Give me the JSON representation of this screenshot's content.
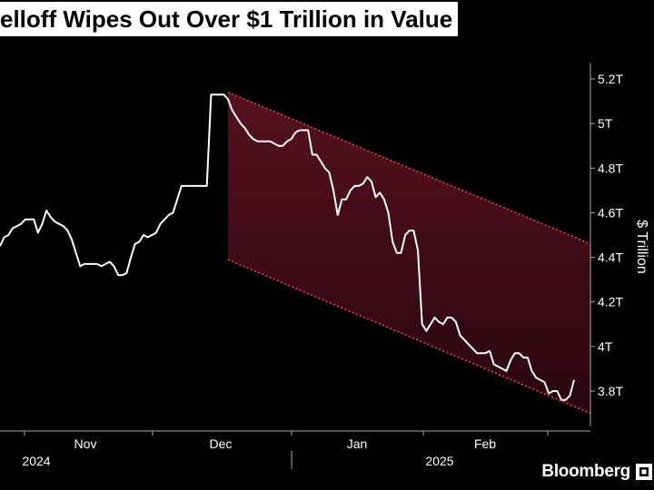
{
  "headline": "elloff Wipes Out Over $1 Trillion in Value",
  "source": "Bloomberg",
  "colors": {
    "background": "#000000",
    "line": "#ffffff",
    "channel_fill": "#3a0a12",
    "channel_border": "#ff3b4e",
    "text": "#ffffff"
  },
  "chart_data": {
    "type": "line",
    "ylabel": "$ Trillion",
    "ylim": [
      3.68,
      5.3
    ],
    "y_ticks": [
      {
        "value": 5.2,
        "label": "5.2T"
      },
      {
        "value": 5.0,
        "label": "5T"
      },
      {
        "value": 4.8,
        "label": "4.8T"
      },
      {
        "value": 4.6,
        "label": "4.6T"
      },
      {
        "value": 4.4,
        "label": "4.4T"
      },
      {
        "value": 4.2,
        "label": "4.2T"
      },
      {
        "value": 4.0,
        "label": "4T"
      },
      {
        "value": 3.8,
        "label": "3.8T"
      }
    ],
    "x_month_labels": [
      "Nov",
      "Dec",
      "Jan",
      "Feb"
    ],
    "x_year_labels": [
      "2024",
      "2025"
    ],
    "grid": false,
    "y_axis_position": "right",
    "series": [
      {
        "values": [
          4.45,
          4.49,
          4.5,
          4.53,
          4.54,
          4.55,
          4.57,
          4.57,
          4.57,
          4.51,
          4.55,
          4.61,
          4.58,
          4.56,
          4.55,
          4.54,
          4.52,
          4.48,
          4.42,
          4.36,
          4.37,
          4.37,
          4.37,
          4.37,
          4.36,
          4.37,
          4.38,
          4.36,
          4.32,
          4.32,
          4.33,
          4.4,
          4.46,
          4.47,
          4.5,
          4.49,
          4.5,
          4.51,
          4.55,
          4.57,
          4.59,
          4.6,
          4.66,
          4.72,
          4.72,
          4.72,
          4.72,
          4.72,
          4.72,
          4.72,
          5.13,
          5.13,
          5.13,
          5.13,
          5.11,
          5.06,
          5.03,
          5.0,
          4.98,
          4.95,
          4.93,
          4.92,
          4.92,
          4.92,
          4.92,
          4.91,
          4.9,
          4.9,
          4.92,
          4.93,
          4.96,
          4.97,
          4.97,
          4.97,
          4.86,
          4.86,
          4.83,
          4.8,
          4.78,
          4.7,
          4.59,
          4.66,
          4.66,
          4.7,
          4.72,
          4.72,
          4.73,
          4.76,
          4.74,
          4.67,
          4.69,
          4.66,
          4.6,
          4.47,
          4.42,
          4.42,
          4.5,
          4.52,
          4.52,
          4.43,
          4.1,
          4.07,
          4.1,
          4.13,
          4.11,
          4.1,
          4.13,
          4.13,
          4.11,
          4.05,
          4.03,
          4.01,
          3.99,
          3.97,
          3.97,
          3.97,
          3.98,
          3.92,
          3.91,
          3.9,
          3.89,
          3.94,
          3.97,
          3.97,
          3.95,
          3.95,
          3.89,
          3.86,
          3.85,
          3.84,
          3.79,
          3.8,
          3.8,
          3.76,
          3.76,
          3.78,
          3.85
        ]
      }
    ],
    "channel": {
      "upper": [
        5.14,
        4.46
      ],
      "lower": [
        4.39,
        3.7
      ]
    }
  }
}
